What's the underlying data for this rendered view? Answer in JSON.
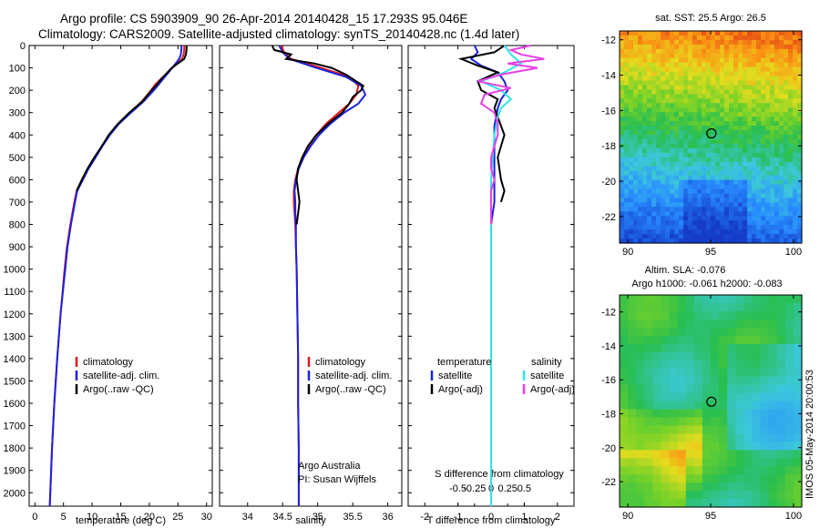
{
  "title_line1": "Argo profile: CS 5903909_90 26-Apr-2014 20140428_15 17.293S 95.046E",
  "title_line2": "Climatology: CARS2009. Satellite-adjusted climatology: synTS_20140428.nc (1.4d later)",
  "colors": {
    "climatology": "#e0161b",
    "satellite": "#1a22e0",
    "argo": "#000000",
    "sal_satellite": "#2fe3e8",
    "sal_argo": "#e640e6"
  },
  "depth_axis": {
    "ticks": [
      0,
      100,
      200,
      300,
      400,
      500,
      600,
      700,
      800,
      900,
      1000,
      1100,
      1200,
      1300,
      1400,
      1500,
      1600,
      1700,
      1800,
      1900,
      2000
    ],
    "labels": [
      "0",
      "100",
      "200",
      "300",
      "400",
      "500",
      "600",
      "700",
      "800",
      "900",
      "1000",
      "1100",
      "1200",
      "1300",
      "1400",
      "1500",
      "1600",
      "1700",
      "1800",
      "1900",
      "2000"
    ]
  },
  "chart_data": [
    {
      "type": "line",
      "name": "temperature-profile",
      "xlabel": "temperature (deg C)",
      "ylabel": "",
      "xlim": [
        -1,
        31
      ],
      "ylim": [
        2060,
        0
      ],
      "xticks": [
        0,
        5,
        10,
        15,
        20,
        25,
        30
      ],
      "xtick_labels": [
        "0",
        "5",
        "10",
        "15",
        "20",
        "25",
        "30"
      ],
      "legend": [
        "climatology",
        "satellite-adj. clim.",
        "Argo(..raw -QC)"
      ],
      "series": [
        {
          "name": "climatology",
          "color": "#e0161b",
          "depth": [
            0,
            20,
            40,
            60,
            80,
            100,
            125,
            150,
            175,
            200,
            250,
            300,
            350,
            400,
            450,
            500,
            550,
            600,
            650,
            700,
            800,
            900,
            1000,
            1200,
            1400,
            1600,
            1800,
            2000,
            2060
          ],
          "values": [
            26.1,
            26.1,
            26.0,
            25.7,
            24.9,
            24.0,
            23.0,
            22.0,
            21.0,
            20.3,
            18.7,
            16.6,
            14.6,
            13.0,
            11.7,
            10.5,
            9.3,
            8.3,
            7.3,
            6.9,
            6.2,
            5.6,
            5.2,
            4.5,
            3.9,
            3.4,
            3.0,
            2.7,
            2.6
          ]
        },
        {
          "name": "satellite-adj. clim.",
          "color": "#1a22e0",
          "depth": [
            0,
            20,
            40,
            60,
            80,
            100,
            125,
            150,
            175,
            200,
            250,
            300,
            350,
            400,
            450,
            500,
            550,
            600,
            650,
            700,
            800,
            900,
            1000,
            1200,
            1400,
            1600,
            1800,
            2000,
            2060
          ],
          "values": [
            25.6,
            25.6,
            25.5,
            25.2,
            24.6,
            24.0,
            23.2,
            22.4,
            21.6,
            20.8,
            19.0,
            16.8,
            14.7,
            13.1,
            11.8,
            10.6,
            9.4,
            8.4,
            7.4,
            7.0,
            6.3,
            5.7,
            5.3,
            4.5,
            3.9,
            3.4,
            3.0,
            2.7,
            2.6
          ]
        },
        {
          "name": "Argo(..raw -QC)",
          "color": "#000000",
          "depth": [
            0,
            20,
            40,
            60,
            80,
            100,
            125,
            150,
            175,
            200,
            250,
            300,
            350,
            400,
            450,
            500,
            550,
            600,
            650
          ],
          "values": [
            26.5,
            26.5,
            26.4,
            26.1,
            25.0,
            23.9,
            23.0,
            22.1,
            21.3,
            20.4,
            18.8,
            16.5,
            14.5,
            12.9,
            11.7,
            10.4,
            9.2,
            8.2,
            7.3
          ]
        }
      ]
    },
    {
      "type": "line",
      "name": "salinity-profile",
      "xlabel": "salinity",
      "ylabel": "",
      "xlim": [
        33.6,
        36.2
      ],
      "ylim": [
        2060,
        0
      ],
      "xticks": [
        34,
        34.5,
        35,
        35.5,
        36
      ],
      "xtick_labels": [
        "34",
        "34.5",
        "35",
        "35.5",
        "36"
      ],
      "legend": [
        "climatology",
        "satellite-adj. clim.",
        "Argo(..raw -QC)"
      ],
      "annotation": [
        "Argo Australia",
        "PI: Susan Wijffels"
      ],
      "series": [
        {
          "name": "climatology",
          "color": "#e0161b",
          "depth": [
            0,
            30,
            60,
            100,
            140,
            180,
            220,
            260,
            300,
            350,
            400,
            450,
            500,
            550,
            600,
            650,
            700,
            750,
            800,
            900,
            1000,
            1200,
            1400,
            1600,
            1800,
            2000,
            2060
          ],
          "values": [
            34.48,
            34.52,
            34.62,
            35.05,
            35.45,
            35.58,
            35.55,
            35.45,
            35.3,
            35.12,
            34.98,
            34.87,
            34.78,
            34.72,
            34.68,
            34.66,
            34.66,
            34.67,
            34.68,
            34.69,
            34.7,
            34.71,
            34.72,
            34.72,
            34.73,
            34.73,
            34.73
          ]
        },
        {
          "name": "satellite-adj. clim.",
          "color": "#1a22e0",
          "depth": [
            0,
            30,
            60,
            100,
            140,
            180,
            220,
            260,
            300,
            350,
            400,
            450,
            500,
            550,
            600,
            650,
            700,
            750,
            800,
            900,
            1000,
            1200,
            1400,
            1600,
            1800,
            2000,
            2060
          ],
          "values": [
            34.45,
            34.5,
            34.6,
            34.98,
            35.4,
            35.62,
            35.68,
            35.58,
            35.38,
            35.18,
            35.02,
            34.9,
            34.8,
            34.73,
            34.69,
            34.67,
            34.68,
            34.68,
            34.69,
            34.69,
            34.7,
            34.71,
            34.72,
            34.72,
            34.73,
            34.73,
            34.73
          ]
        },
        {
          "name": "Argo(..raw -QC)",
          "color": "#000000",
          "depth": [
            0,
            20,
            40,
            60,
            80,
            100,
            130,
            160,
            180,
            200,
            230,
            260,
            300,
            350,
            400,
            450,
            500,
            550,
            600,
            650,
            700,
            750,
            800
          ],
          "values": [
            34.35,
            34.38,
            34.62,
            34.55,
            34.95,
            35.2,
            35.4,
            35.55,
            35.65,
            35.62,
            35.5,
            35.45,
            35.35,
            35.15,
            34.98,
            34.86,
            34.78,
            34.72,
            34.7,
            34.72,
            34.74,
            34.72,
            34.7
          ]
        }
      ]
    },
    {
      "type": "line",
      "name": "difference-from-climatology",
      "xlabel": "T difference from climatology",
      "xlabel_top": "S difference from climatology",
      "xlim": [
        -2.5,
        2.5
      ],
      "ylim": [
        2060,
        0
      ],
      "xticks": [
        -2,
        -1,
        0,
        1,
        2
      ],
      "xtick_labels": [
        "-2",
        "-1",
        "0",
        "1",
        "2"
      ],
      "sticks": [
        -1,
        -0.5,
        0,
        0.5,
        1
      ],
      "stick_labels": [
        "-0.5",
        "-0.25",
        "0",
        "0.25",
        "0.5"
      ],
      "legend": [
        {
          "heading": "temperature",
          "items": [
            "satellite",
            "Argo(-adj)"
          ]
        },
        {
          "heading": "salinity",
          "items": [
            "satellite",
            "Argo(-adj)"
          ]
        }
      ],
      "series": [
        {
          "name": "T satellite",
          "color": "#1a22e0",
          "depth": [
            0,
            30,
            60,
            90,
            120,
            160,
            200,
            240,
            280,
            320,
            360,
            400,
            500,
            600,
            700,
            800,
            1000,
            1500,
            2000,
            2060
          ],
          "values": [
            -0.5,
            -0.4,
            -0.6,
            -0.3,
            0.2,
            0.4,
            0.5,
            0.3,
            0.2,
            0.15,
            0.1,
            0.1,
            0.1,
            0.1,
            0.1,
            0.0,
            0.0,
            0.0,
            0.0,
            0.0
          ]
        },
        {
          "name": "T Argo(-adj)",
          "color": "#000000",
          "depth": [
            0,
            30,
            60,
            90,
            120,
            160,
            200,
            240,
            280,
            320,
            360,
            400,
            450,
            500,
            550,
            600,
            650,
            700
          ],
          "values": [
            0.4,
            0.1,
            -0.9,
            -0.4,
            0.2,
            -0.4,
            -0.3,
            0.2,
            0.1,
            0.2,
            0.3,
            0.4,
            0.3,
            0.2,
            0.25,
            0.3,
            0.4,
            0.3
          ]
        },
        {
          "name": "S satellite",
          "color": "#2fe3e8",
          "depth": [
            0,
            40,
            80,
            120,
            160,
            200,
            240,
            280,
            320,
            360,
            400,
            500,
            600,
            700,
            800,
            1000,
            1500,
            2000,
            2060
          ],
          "values": [
            0.4,
            0.6,
            0.9,
            0.4,
            -0.3,
            0.3,
            0.6,
            0.3,
            0.2,
            0.15,
            0.1,
            0.05,
            0.0,
            0.0,
            0.0,
            0.0,
            0.0,
            0.0,
            0.0
          ]
        },
        {
          "name": "S Argo(-adj)",
          "color": "#e640e6",
          "depth": [
            0,
            20,
            40,
            60,
            80,
            100,
            130,
            160,
            190,
            220,
            260,
            300,
            350,
            400,
            450,
            500,
            550,
            600,
            650,
            700,
            750,
            800
          ],
          "values": [
            1.2,
            0.6,
            0.9,
            1.6,
            0.5,
            1.4,
            0.3,
            -0.4,
            0.6,
            -0.2,
            -0.3,
            0.1,
            0.2,
            0.2,
            0.1,
            0.0,
            0.0,
            0.1,
            0.0,
            0.0,
            0.0,
            0.0
          ]
        }
      ]
    },
    {
      "type": "heatmap",
      "name": "sst-map",
      "title": "sat. SST: 25.5 Argo: 26.5",
      "xlim": [
        89.5,
        100.5
      ],
      "ylim": [
        -23.5,
        -11.5
      ],
      "xticks": [
        90,
        95,
        100
      ],
      "xtick_labels": [
        "90",
        "95",
        "100"
      ],
      "yticks": [
        -12,
        -14,
        -16,
        -18,
        -20,
        -22
      ],
      "ytick_labels": [
        "-12",
        "-14",
        "-16",
        "-18",
        "-20",
        "-22"
      ],
      "marker_lon": 95.046,
      "marker_lat": -17.293
    },
    {
      "type": "heatmap",
      "name": "sla-map",
      "title_lines": [
        "Altim. SLA: -0.076",
        "Argo h1000: -0.061 h2000: -0.083"
      ],
      "xlim": [
        89.5,
        100.5
      ],
      "ylim": [
        -23.5,
        -11
      ],
      "xticks": [
        90,
        95,
        100
      ],
      "xtick_labels": [
        "90",
        "95",
        "100"
      ],
      "yticks": [
        -12,
        -14,
        -16,
        -18,
        -20,
        -22
      ],
      "ytick_labels": [
        "-12",
        "-14",
        "-16",
        "-18",
        "-20",
        "-22"
      ],
      "marker_lon": 95.046,
      "marker_lat": -17.293
    }
  ],
  "imos_text": "IMOS 05-May-2014 20:00:53"
}
